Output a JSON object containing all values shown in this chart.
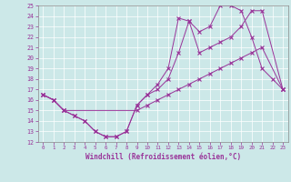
{
  "xlabel": "Windchill (Refroidissement éolien,°C)",
  "bg_color": "#cce8e8",
  "line_color": "#993399",
  "xlim": [
    -0.5,
    23.5
  ],
  "ylim": [
    12,
    25
  ],
  "xticks": [
    0,
    1,
    2,
    3,
    4,
    5,
    6,
    7,
    8,
    9,
    10,
    11,
    12,
    13,
    14,
    15,
    16,
    17,
    18,
    19,
    20,
    21,
    22,
    23
  ],
  "yticks": [
    12,
    13,
    14,
    15,
    16,
    17,
    18,
    19,
    20,
    21,
    22,
    23,
    24,
    25
  ],
  "s1x": [
    0,
    1,
    2,
    3,
    4,
    5,
    6,
    7,
    8,
    9,
    10,
    11,
    12,
    13,
    14,
    15,
    16,
    17,
    18,
    19,
    20,
    21,
    22,
    23
  ],
  "s1y": [
    16.5,
    16.0,
    15.0,
    14.5,
    14.0,
    13.0,
    12.5,
    12.5,
    13.0,
    15.5,
    16.5,
    17.5,
    19.0,
    23.8,
    23.5,
    22.5,
    23.0,
    25.0,
    25.0,
    24.5,
    22.0,
    19.0,
    18.0,
    17.0
  ],
  "s2x": [
    0,
    1,
    2,
    3,
    4,
    5,
    6,
    7,
    8,
    9,
    10,
    11,
    12,
    13,
    14,
    15,
    16,
    17,
    18,
    19,
    20,
    21,
    23
  ],
  "s2y": [
    16.5,
    16.0,
    15.0,
    14.5,
    14.0,
    13.0,
    12.5,
    12.5,
    13.0,
    15.5,
    16.5,
    17.0,
    18.0,
    20.5,
    23.5,
    20.5,
    21.0,
    21.5,
    22.0,
    23.0,
    24.5,
    24.5,
    17.0
  ],
  "s3x": [
    0,
    1,
    2,
    9,
    10,
    11,
    12,
    13,
    14,
    15,
    16,
    17,
    18,
    19,
    20,
    21,
    23
  ],
  "s3y": [
    16.5,
    16.0,
    15.0,
    15.0,
    15.5,
    16.0,
    16.5,
    17.0,
    17.5,
    18.0,
    18.5,
    19.0,
    19.5,
    20.0,
    20.5,
    21.0,
    17.0
  ]
}
